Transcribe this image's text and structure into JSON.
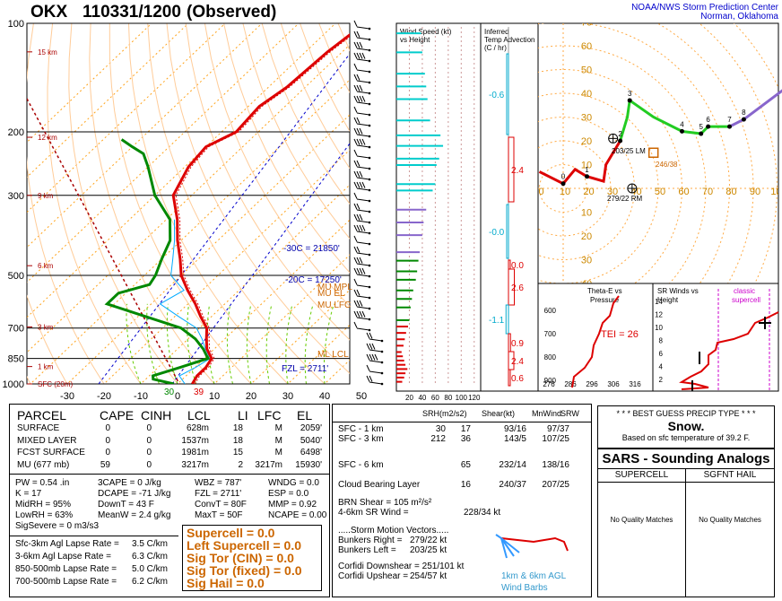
{
  "header": {
    "station": "OKX",
    "datetime": "110331/1200",
    "observed": "(Observed)",
    "org_line1": "NOAA/NWS Storm Prediction Center",
    "org_line2": "Norman, Oklahoma"
  },
  "colors": {
    "temp": "#dd0000",
    "dewpoint": "#008800",
    "virtual_temp": "#dd0000",
    "wetbulb": "#00aaff",
    "isotherm": "#ff9900",
    "dry_adiabat": "#ffcc99",
    "moist_adiabat": "#66cc00",
    "param_orange": "#cc6600",
    "hodo_low": "#dd0000",
    "hodo_mid": "#22cc22",
    "hodo_high": "#8866cc",
    "cyan": "#00cccc",
    "navy": "#0000aa"
  },
  "chart_data": [
    {
      "type": "line",
      "name": "skew-t",
      "pressure_ticks": [
        100,
        200,
        300,
        500,
        700,
        850,
        1000
      ],
      "height_labels": [
        "15 km",
        "12 km",
        "9 km",
        "6 km",
        "3 km",
        "1 km",
        "SFC (20m)"
      ],
      "height_label_pressures": [
        120,
        207,
        300,
        470,
        695,
        895,
        1000
      ],
      "temp_ticks": [
        -30,
        -20,
        -10,
        0,
        10,
        20,
        30,
        40,
        50
      ],
      "surface_temp_c": 4,
      "surface_dewpoint_c": -1,
      "temperature_profile": [
        [
          1000,
          4
        ],
        [
          950,
          3
        ],
        [
          900,
          3
        ],
        [
          850,
          2
        ],
        [
          800,
          -2
        ],
        [
          750,
          -5
        ],
        [
          700,
          -8
        ],
        [
          650,
          -13
        ],
        [
          600,
          -18
        ],
        [
          550,
          -24
        ],
        [
          500,
          -30
        ],
        [
          450,
          -35
        ],
        [
          400,
          -41
        ],
        [
          350,
          -47
        ],
        [
          300,
          -55
        ],
        [
          250,
          -59
        ],
        [
          220,
          -60
        ],
        [
          200,
          -56
        ],
        [
          170,
          -57
        ],
        [
          150,
          -55
        ],
        [
          120,
          -54
        ],
        [
          100,
          -52
        ]
      ],
      "dewpoint_profile": [
        [
          1000,
          -1
        ],
        [
          970,
          -8
        ],
        [
          950,
          -9
        ],
        [
          900,
          -4
        ],
        [
          850,
          1
        ],
        [
          800,
          -3
        ],
        [
          750,
          -8
        ],
        [
          700,
          -15
        ],
        [
          650,
          -28
        ],
        [
          600,
          -42
        ],
        [
          560,
          -42
        ],
        [
          530,
          -36
        ],
        [
          500,
          -37
        ],
        [
          450,
          -40
        ],
        [
          400,
          -43
        ],
        [
          350,
          -49
        ],
        [
          300,
          -60
        ],
        [
          250,
          -70
        ],
        [
          230,
          -75
        ],
        [
          220,
          -80
        ],
        [
          210,
          -85
        ]
      ],
      "annotations": {
        "m30": "-30C = 21850'",
        "m20": "-20C = 17250'",
        "fzl": "FZL = 2711'",
        "mu_mpl": "MU MPL",
        "mu_el": "MU EL",
        "mu_lfc": "MU LFC",
        "ml_lcl": "ML LCL",
        "bottom_t": "39",
        "bottom_td": "30"
      }
    },
    {
      "type": "bar",
      "name": "wind-speed-vs-height",
      "title": "Wind Speed (kt) vs Height",
      "x_ticks": [
        "20",
        "40",
        "60",
        "80",
        "100",
        "120"
      ],
      "xlim": [
        0,
        130
      ],
      "levels": [
        {
          "height_km": 0.1,
          "speed_kt": 9
        },
        {
          "height_km": 0.3,
          "speed_kt": 12
        },
        {
          "height_km": 0.5,
          "speed_kt": 14
        },
        {
          "height_km": 0.7,
          "speed_kt": 17
        },
        {
          "height_km": 0.9,
          "speed_kt": 14
        },
        {
          "height_km": 1.1,
          "speed_kt": 12
        },
        {
          "height_km": 1.3,
          "speed_kt": 10
        },
        {
          "height_km": 1.5,
          "speed_kt": 8
        },
        {
          "height_km": 1.8,
          "speed_kt": 11
        },
        {
          "height_km": 2.1,
          "speed_kt": 13
        },
        {
          "height_km": 2.4,
          "speed_kt": 15
        },
        {
          "height_km": 2.7,
          "speed_kt": 18
        },
        {
          "height_km": 3.0,
          "speed_kt": 20
        },
        {
          "height_km": 3.6,
          "speed_kt": 22
        },
        {
          "height_km": 4.0,
          "speed_kt": 24
        },
        {
          "height_km": 4.4,
          "speed_kt": 26
        },
        {
          "height_km": 4.9,
          "speed_kt": 30
        },
        {
          "height_km": 5.3,
          "speed_kt": 32
        },
        {
          "height_km": 5.8,
          "speed_kt": 34
        },
        {
          "height_km": 6.2,
          "speed_kt": 36
        },
        {
          "height_km": 7.0,
          "speed_kt": 40
        },
        {
          "height_km": 7.6,
          "speed_kt": 42
        },
        {
          "height_km": 8.2,
          "speed_kt": 46
        },
        {
          "height_km": 9.1,
          "speed_kt": 56
        },
        {
          "height_km": 9.4,
          "speed_kt": 60
        },
        {
          "height_km": 10.3,
          "speed_kt": 62
        },
        {
          "height_km": 10.6,
          "speed_kt": 66
        },
        {
          "height_km": 11.2,
          "speed_kt": 72
        },
        {
          "height_km": 11.7,
          "speed_kt": 68
        },
        {
          "height_km": 12.4,
          "speed_kt": 52
        },
        {
          "height_km": 13.4,
          "speed_kt": 48
        },
        {
          "height_km": 14.0,
          "speed_kt": 46
        },
        {
          "height_km": 14.6,
          "speed_kt": 44
        },
        {
          "height_km": 15.6,
          "speed_kt": 40
        },
        {
          "height_km": 16.5,
          "speed_kt": 38
        }
      ]
    },
    {
      "type": "line",
      "name": "inferred-temp-advection",
      "title": "Inferred Temp Advection (C / hr)",
      "labels": [
        "-0.6",
        "2.4",
        "-0.0",
        "0.0",
        "2.6",
        "-1.1",
        "0.9",
        "2.4",
        "0.6"
      ]
    },
    {
      "type": "scatter",
      "name": "hodograph",
      "ring_labels": [
        "10",
        "20",
        "30",
        "40",
        "50",
        "60",
        "70",
        "80",
        "90"
      ],
      "x_labels": [
        "0",
        "10",
        "20",
        "30",
        "40",
        "50",
        "60",
        "70",
        "80",
        "90",
        "100"
      ],
      "y_labels": [
        "80",
        "70",
        "60",
        "50",
        "40",
        "30",
        "20",
        "10",
        "0",
        "10",
        "20",
        "30",
        "40",
        "50"
      ],
      "points": [
        [
          -10,
          7
        ],
        [
          0,
          2
        ],
        [
          5,
          8
        ],
        [
          10,
          5
        ],
        [
          17,
          3
        ],
        [
          18,
          10
        ],
        [
          24,
          20
        ],
        [
          27,
          30
        ],
        [
          28,
          37
        ],
        [
          38,
          30
        ],
        [
          50,
          24
        ],
        [
          58,
          23
        ],
        [
          61,
          26
        ],
        [
          70,
          26
        ],
        [
          76,
          29
        ],
        [
          100,
          47
        ]
      ],
      "height_labels": [
        "0",
        "1",
        "2",
        "3",
        "4",
        "5",
        "6",
        "7",
        "8"
      ],
      "bunkers_right_label": "279/22 RM",
      "bunkers_left_label": "203/25 LM",
      "mean_wind_label": "246/38"
    },
    {
      "type": "line",
      "name": "theta-e-vs-pressure",
      "title": "Theta-E vs Pressure",
      "y_ticks": [
        "600",
        "700",
        "800",
        "900"
      ],
      "x_ticks": [
        "276",
        "286",
        "296",
        "306",
        "316"
      ],
      "tei_label": "TEI = 26"
    },
    {
      "type": "line",
      "name": "sr-winds-vs-height",
      "title": "SR Winds vs Height",
      "y_ticks": [
        "2",
        "4",
        "6",
        "8",
        "10",
        "12",
        "14"
      ],
      "classic_label": "classic supercell"
    }
  ],
  "parcel_table": {
    "headers": [
      "PARCEL",
      "CAPE",
      "CINH",
      "LCL",
      "LI",
      "LFC",
      "EL"
    ],
    "rows": [
      [
        "SURFACE",
        "0",
        "0",
        "628m",
        "18",
        "M",
        "2059'"
      ],
      [
        "MIXED LAYER",
        "0",
        "0",
        "1537m",
        "18",
        "M",
        "5040'"
      ],
      [
        "FCST SURFACE",
        "0",
        "0",
        "1981m",
        "15",
        "M",
        "6498'"
      ],
      [
        "MU   (677 mb)",
        "59",
        "0",
        "3217m",
        "2",
        "3217m",
        "15930'"
      ]
    ]
  },
  "indices": {
    "col1": [
      "PW = 0.54 .in",
      "K = 17",
      "MidRH = 95%",
      "LowRH = 63%",
      "SigSevere = 0 m3/s3"
    ],
    "col2": [
      "3CAPE = 0 J/kg",
      "DCAPE = -71 J/kg",
      "DownT = 43 F",
      "MeanW = 2.4 g/kg"
    ],
    "col3": [
      "WBZ = 787'",
      "FZL = 2711'",
      "ConvT = 80F",
      "MaxT = 50F"
    ],
    "col4": [
      "WNDG = 0.0",
      "ESP = 0.0",
      "MMP = 0.92",
      "NCAPE = 0.00"
    ]
  },
  "lapse_rates": [
    [
      "Sfc-3km Agl Lapse Rate =",
      "3.5 C/km"
    ],
    [
      "3-6km Agl Lapse Rate =",
      "6.3 C/km"
    ],
    [
      "850-500mb Lapse Rate =",
      "5.0 C/km"
    ],
    [
      "700-500mb Lapse Rate =",
      "6.2 C/km"
    ]
  ],
  "composite": [
    "Supercell = 0.0",
    "Left Supercell = 0.0",
    "Sig Tor (CIN) = 0.0",
    "Sig Tor (fixed) = 0.0",
    "Sig Hail = 0.0"
  ],
  "kinematics": {
    "headers": [
      "SRH(m2/s2)",
      "Shear(kt)",
      "MnWind",
      "SRW"
    ],
    "rows": [
      [
        "SFC - 1 km",
        "30",
        "17",
        "93/16",
        "97/37"
      ],
      [
        "SFC - 3 km",
        "212",
        "36",
        "143/5",
        "107/25"
      ],
      [
        "SFC - 6 km",
        "",
        "65",
        "232/14",
        "138/16"
      ],
      [
        "Cloud Bearing Layer",
        "",
        "16",
        "240/37",
        "207/25"
      ]
    ],
    "brn": "BRN Shear = 105 m²/s²",
    "sr_wind": "4-6km SR Wind =",
    "sr_wind_val": "228/34 kt",
    "motion_title": ".....Storm Motion Vectors.....",
    "bunkers_right": "Bunkers Right =",
    "bunkers_right_val": "279/22 kt",
    "bunkers_left": "Bunkers Left =",
    "bunkers_left_val": "203/25 kt",
    "corfidi_down": "Corfidi Downshear = 251/101 kt",
    "corfidi_up": "Corfidi Upshear =",
    "corfidi_up_val": "254/57 kt",
    "barb_caption1": "1km & 6km AGL",
    "barb_caption2": "Wind Barbs"
  },
  "precip": {
    "title": "* * * BEST GUESS PRECIP TYPE * * *",
    "type": "Snow.",
    "basis": "Based on sfc temperature of 39.2 F."
  },
  "sars": {
    "title": "SARS - Sounding Analogs",
    "col1": "SUPERCELL",
    "col2": "SGFNT HAIL",
    "none1": "No Quality Matches",
    "none2": "No Quality Matches"
  }
}
